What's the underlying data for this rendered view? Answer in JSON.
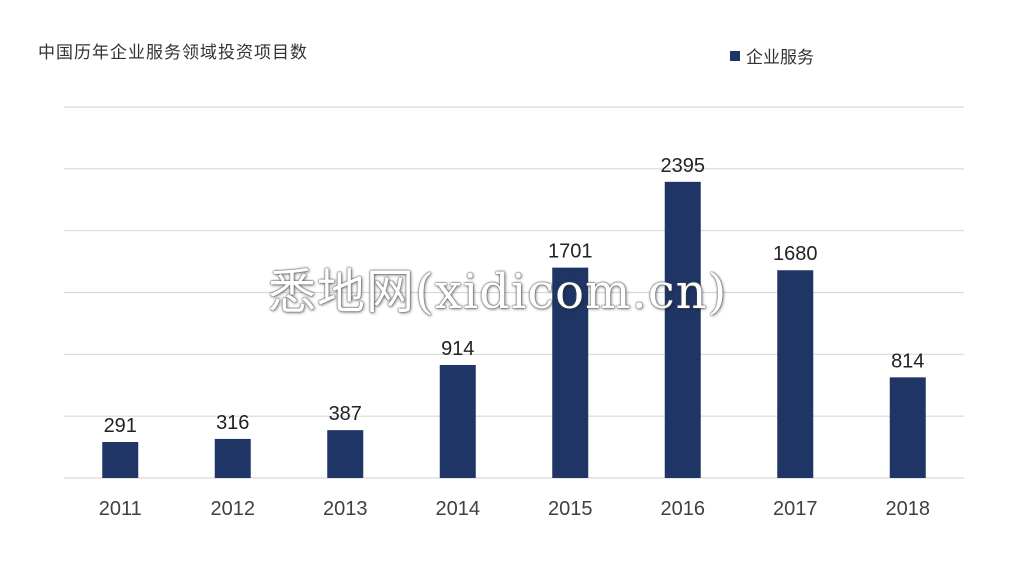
{
  "chart_data": {
    "type": "bar",
    "title": "中国历年企业服务领域投资项目数",
    "categories": [
      "2011",
      "2012",
      "2013",
      "2014",
      "2015",
      "2016",
      "2017",
      "2018"
    ],
    "series": [
      {
        "name": "企业服务",
        "values": [
          291,
          316,
          387,
          914,
          1701,
          2395,
          1680,
          814
        ]
      }
    ],
    "ylim": [
      0,
      3000
    ],
    "grid": true,
    "legend": "top-right",
    "bar_color": "#1f3566",
    "show_data_labels": true
  },
  "watermark": "悉地网(xidicom.cn)"
}
